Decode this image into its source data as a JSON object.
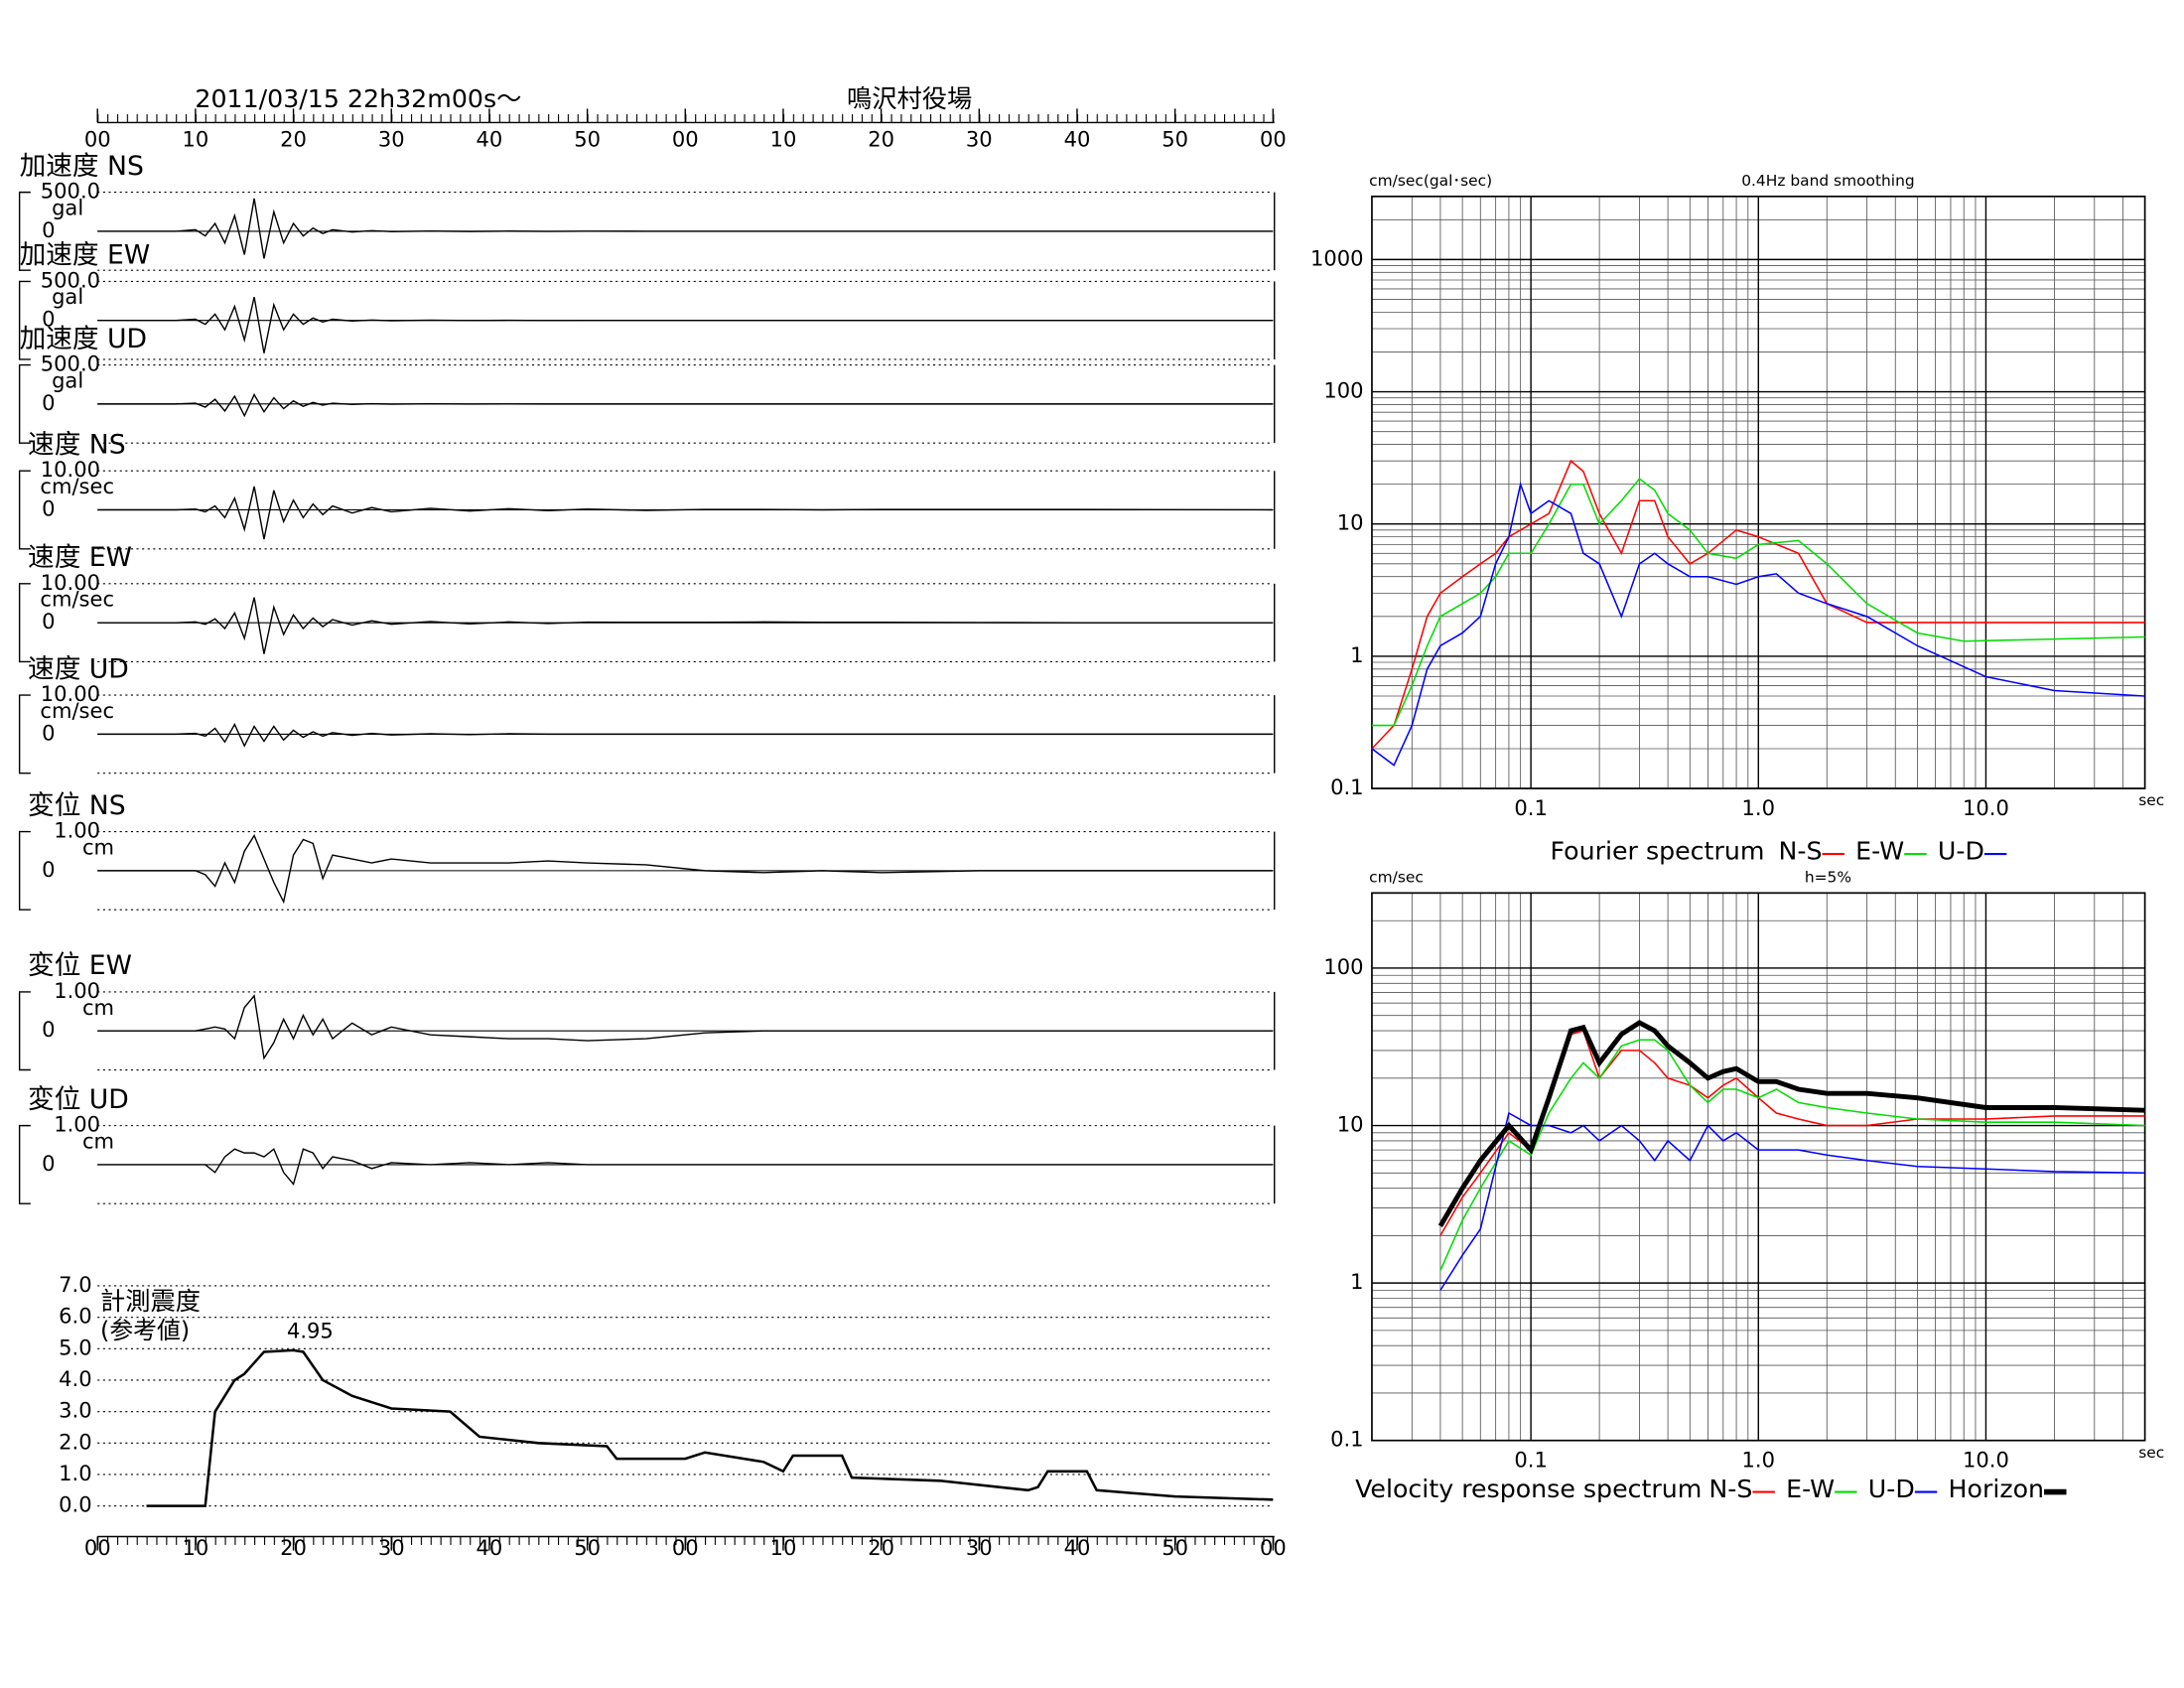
{
  "header": {
    "datetime": "2011/03/15  22h32m00s〜",
    "station": "鳴沢村役場"
  },
  "chart_data": [
    {
      "type": "waveform",
      "xlim": [
        0,
        120
      ],
      "xticks": [
        {
          "value": 0,
          "label": "00"
        },
        {
          "value": 10,
          "label": "10"
        },
        {
          "value": 20,
          "label": "20"
        },
        {
          "value": 30,
          "label": "30"
        },
        {
          "value": 40,
          "label": "40"
        },
        {
          "value": 50,
          "label": "50"
        },
        {
          "value": 60,
          "label": "00"
        },
        {
          "value": 70,
          "label": "10"
        },
        {
          "value": 80,
          "label": "20"
        },
        {
          "value": 90,
          "label": "30"
        },
        {
          "value": 100,
          "label": "40"
        },
        {
          "value": 110,
          "label": "50"
        },
        {
          "value": 120,
          "label": "00"
        }
      ],
      "x": [
        0,
        4,
        8,
        10,
        11,
        12,
        13,
        14,
        15,
        16,
        17,
        18,
        19,
        20,
        21,
        22,
        23,
        24,
        26,
        28,
        30,
        34,
        38,
        42,
        46,
        50,
        56,
        62,
        68,
        74,
        80,
        90,
        100,
        110,
        120
      ],
      "traces": [
        {
          "name": "加速度 NS",
          "unit": "gal",
          "ylim": [
            -500,
            500
          ],
          "yticks": [
            {
              "value": 500,
              "label": "500.0"
            },
            0
          ],
          "values": [
            0,
            0,
            0,
            20,
            -60,
            100,
            -150,
            200,
            -300,
            420,
            -350,
            250,
            -150,
            100,
            -60,
            40,
            -30,
            20,
            -10,
            8,
            -5,
            3,
            -3,
            2,
            -2,
            1,
            0,
            0,
            0,
            0,
            0,
            0,
            0,
            0,
            0
          ]
        },
        {
          "name": "加速度 EW",
          "unit": "gal",
          "ylim": [
            -500,
            500
          ],
          "yticks": [
            {
              "value": 500,
              "label": "500.0"
            },
            0
          ],
          "values": [
            0,
            0,
            0,
            15,
            -50,
            80,
            -120,
            180,
            -250,
            300,
            -420,
            200,
            -120,
            80,
            -50,
            30,
            -20,
            15,
            -8,
            5,
            -4,
            3,
            -2,
            1,
            -1,
            0,
            0,
            0,
            0,
            0,
            0,
            0,
            0,
            0,
            0
          ]
        },
        {
          "name": "加速度 UD",
          "unit": "gal",
          "ylim": [
            -500,
            500
          ],
          "yticks": [
            {
              "value": 500,
              "label": "500.0"
            },
            0
          ],
          "values": [
            0,
            0,
            0,
            10,
            -40,
            60,
            -90,
            100,
            -150,
            120,
            -100,
            80,
            -60,
            40,
            -30,
            20,
            -15,
            10,
            -5,
            4,
            -3,
            2,
            -1,
            1,
            0,
            0,
            0,
            0,
            0,
            0,
            0,
            0,
            0,
            0,
            0
          ]
        },
        {
          "name": "速度 NS",
          "unit": "cm/sec",
          "ylim": [
            -10,
            10
          ],
          "yticks": [
            {
              "value": 10,
              "label": "10.00"
            },
            0
          ],
          "values": [
            0,
            0,
            0,
            0.2,
            -0.5,
            1,
            -2,
            3,
            -5,
            6,
            -7.5,
            5,
            -3,
            2.5,
            -2,
            1.5,
            -1.2,
            1,
            -0.8,
            0.6,
            -0.5,
            0.4,
            -0.3,
            0.3,
            -0.2,
            0.2,
            -0.15,
            0.1,
            0.1,
            0,
            0.1,
            0.1,
            0.1,
            0.05,
            0
          ]
        },
        {
          "name": "速度 EW",
          "unit": "cm/sec",
          "ylim": [
            -10,
            10
          ],
          "yticks": [
            {
              "value": 10,
              "label": "10.00"
            },
            0
          ],
          "values": [
            0,
            0,
            0,
            0.2,
            -0.4,
            1,
            -1.5,
            2.5,
            -4,
            6.5,
            -8,
            4,
            -3,
            2,
            -1.5,
            1.2,
            -1,
            0.8,
            -0.6,
            0.5,
            -0.4,
            0.3,
            -0.3,
            0.2,
            -0.2,
            0.15,
            0.1,
            0.1,
            0.2,
            0.1,
            0.1,
            0.05,
            0,
            0,
            0
          ]
        },
        {
          "name": "速度 UD",
          "unit": "cm/sec",
          "ylim": [
            -10,
            10
          ],
          "yticks": [
            {
              "value": 10,
              "label": "10.00"
            },
            0
          ],
          "values": [
            0,
            0,
            0,
            0.2,
            -0.5,
            1.5,
            -2,
            2.5,
            -3,
            2,
            -1.8,
            2,
            -1.5,
            1,
            -0.8,
            0.6,
            -0.5,
            0.4,
            -0.3,
            0.2,
            -0.2,
            0.1,
            -0.1,
            0.1,
            0,
            0,
            0,
            0,
            0,
            0,
            0,
            0,
            0,
            0,
            0
          ]
        },
        {
          "name": "変位 NS",
          "unit": "cm",
          "ylim": [
            -1,
            1
          ],
          "yticks": [
            {
              "value": 1,
              "label": "1.00"
            },
            0
          ],
          "values": [
            0,
            0,
            0,
            0,
            -0.1,
            -0.4,
            0.2,
            -0.3,
            0.5,
            0.9,
            0.3,
            -0.3,
            -0.8,
            0.4,
            0.8,
            0.7,
            -0.2,
            0.4,
            0.3,
            0.2,
            0.3,
            0.2,
            0.2,
            0.2,
            0.25,
            0.2,
            0.15,
            0,
            -0.05,
            0,
            -0.05,
            0,
            0,
            0,
            0
          ]
        },
        {
          "name": "変位 EW",
          "unit": "cm",
          "ylim": [
            -1,
            1
          ],
          "yticks": [
            {
              "value": 1,
              "label": "1.00"
            },
            0
          ],
          "values": [
            0,
            0,
            0,
            0,
            0.05,
            0.1,
            0.05,
            -0.2,
            0.6,
            0.9,
            -0.7,
            -0.3,
            0.3,
            -0.2,
            0.4,
            -0.1,
            0.3,
            -0.2,
            0.2,
            -0.1,
            0.1,
            -0.1,
            -0.15,
            -0.2,
            -0.2,
            -0.25,
            -0.2,
            -0.05,
            0,
            0,
            0,
            0,
            0,
            0,
            0
          ]
        },
        {
          "name": "変位 UD",
          "unit": "cm",
          "ylim": [
            -1,
            1
          ],
          "yticks": [
            {
              "value": 1,
              "label": "1.00"
            },
            0
          ],
          "values": [
            0,
            0,
            0,
            0,
            0,
            -0.2,
            0.2,
            0.4,
            0.3,
            0.3,
            0.2,
            0.4,
            -0.2,
            -0.5,
            0.4,
            0.3,
            -0.1,
            0.2,
            0.1,
            -0.1,
            0.05,
            0,
            0.05,
            0,
            0.05,
            0,
            0,
            0,
            0,
            0,
            0,
            0,
            0,
            0,
            0
          ]
        }
      ]
    },
    {
      "type": "step-line",
      "ylabel": "計測震度",
      "ylabel_note": "(参考値)",
      "peak_label": "4.95",
      "color": "#000000",
      "xlim": [
        0,
        120
      ],
      "xticks": [
        {
          "value": 0,
          "label": "00"
        },
        {
          "value": 10,
          "label": "10"
        },
        {
          "value": 20,
          "label": "20"
        },
        {
          "value": 30,
          "label": "30"
        },
        {
          "value": 40,
          "label": "40"
        },
        {
          "value": 50,
          "label": "50"
        },
        {
          "value": 60,
          "label": "00"
        },
        {
          "value": 70,
          "label": "10"
        },
        {
          "value": 80,
          "label": "20"
        },
        {
          "value": 90,
          "label": "30"
        },
        {
          "value": 100,
          "label": "40"
        },
        {
          "value": 110,
          "label": "50"
        },
        {
          "value": 120,
          "label": "00"
        }
      ],
      "ylim": [
        0,
        7
      ],
      "yticks": [
        {
          "value": 0,
          "label": "0.0"
        },
        {
          "value": 1,
          "label": "1.0"
        },
        {
          "value": 2,
          "label": "2.0"
        },
        {
          "value": 3,
          "label": "3.0"
        },
        {
          "value": 4,
          "label": "4.0"
        },
        {
          "value": 5,
          "label": "5.0"
        },
        {
          "value": 6,
          "label": "6.0"
        },
        {
          "value": 7,
          "label": "7.0"
        }
      ],
      "x": [
        5,
        11,
        12,
        14,
        15,
        17,
        20,
        21,
        23,
        26,
        30,
        36,
        39,
        45,
        52,
        53,
        60,
        62,
        68,
        70,
        71,
        76,
        77,
        86,
        95,
        96,
        97,
        101,
        102,
        110,
        120
      ],
      "values": [
        0,
        0,
        3,
        4,
        4.2,
        4.9,
        4.95,
        4.9,
        4,
        3.5,
        3.1,
        3,
        2.2,
        2,
        1.9,
        1.5,
        1.5,
        1.7,
        1.4,
        1.1,
        1.6,
        1.6,
        0.9,
        0.8,
        0.5,
        0.6,
        1.1,
        1.1,
        0.5,
        0.3,
        0.2
      ]
    },
    {
      "type": "log-line",
      "title": "Fourier spectrum",
      "ylabel": "cm/sec(gal･sec)",
      "note": "0.4Hz band smoothing",
      "xlabel": "sec",
      "xlim": [
        0.02,
        50
      ],
      "ylim": [
        0.1,
        3000
      ],
      "xticks": [
        0.1,
        {
          "value": 1,
          "label": "1.0"
        },
        {
          "value": 10,
          "label": "10.0"
        }
      ],
      "yticks": [
        0.1,
        1,
        10,
        100,
        1000
      ],
      "series": [
        {
          "name": "N-S",
          "color": "#ff0000",
          "x": [
            0.02,
            0.025,
            0.03,
            0.035,
            0.04,
            0.05,
            0.06,
            0.07,
            0.08,
            0.1,
            0.12,
            0.15,
            0.17,
            0.2,
            0.25,
            0.3,
            0.35,
            0.4,
            0.5,
            0.6,
            0.8,
            1,
            1.5,
            2,
            3,
            10,
            50
          ],
          "values": [
            0.2,
            0.3,
            0.8,
            2,
            3,
            4,
            5,
            6,
            8,
            10,
            12,
            30,
            25,
            12,
            6,
            15,
            15,
            8,
            5,
            6,
            9,
            8,
            6,
            2.5,
            1.8,
            1.8,
            1.8
          ]
        },
        {
          "name": "E-W",
          "color": "#00dd00",
          "x": [
            0.02,
            0.025,
            0.03,
            0.035,
            0.04,
            0.05,
            0.06,
            0.07,
            0.08,
            0.1,
            0.12,
            0.15,
            0.17,
            0.2,
            0.25,
            0.3,
            0.35,
            0.4,
            0.5,
            0.6,
            0.8,
            1,
            1.5,
            2,
            3,
            5,
            8,
            50
          ],
          "values": [
            0.3,
            0.3,
            0.6,
            1.2,
            2,
            2.5,
            3,
            4,
            6,
            6,
            10,
            20,
            20,
            10,
            15,
            22,
            18,
            12,
            9,
            6,
            5.5,
            7,
            7.5,
            5,
            2.5,
            1.5,
            1.3,
            1.4
          ]
        },
        {
          "name": "U-D",
          "color": "#0000ff",
          "x": [
            0.02,
            0.025,
            0.03,
            0.035,
            0.04,
            0.05,
            0.06,
            0.07,
            0.08,
            0.09,
            0.1,
            0.12,
            0.15,
            0.17,
            0.2,
            0.25,
            0.3,
            0.35,
            0.4,
            0.5,
            0.6,
            0.8,
            1,
            1.2,
            1.5,
            2,
            3,
            5,
            10,
            20,
            50
          ],
          "values": [
            0.2,
            0.15,
            0.3,
            0.8,
            1.2,
            1.5,
            2,
            5,
            8,
            20,
            12,
            15,
            12,
            6,
            5,
            2,
            5,
            6,
            5,
            4,
            4,
            3.5,
            4,
            4.2,
            3,
            2.5,
            2,
            1.2,
            0.7,
            0.55,
            0.5
          ]
        }
      ]
    },
    {
      "type": "log-line",
      "title": "Velocity response spectrum",
      "ylabel": "cm/sec",
      "note": "h=5%",
      "xlabel": "sec",
      "xlim": [
        0.02,
        50
      ],
      "ylim": [
        0.1,
        300
      ],
      "xticks": [
        0.1,
        {
          "value": 1,
          "label": "1.0"
        },
        {
          "value": 10,
          "label": "10.0"
        }
      ],
      "yticks": [
        0.1,
        1,
        10,
        100
      ],
      "x": [
        0.04,
        0.05,
        0.06,
        0.08,
        0.1,
        0.12,
        0.15,
        0.17,
        0.2,
        0.25,
        0.3,
        0.35,
        0.4,
        0.5,
        0.6,
        0.7,
        0.8,
        1,
        1.2,
        1.5,
        2,
        3,
        5,
        10,
        20,
        50
      ],
      "series": [
        {
          "name": "N-S",
          "color": "#ff0000",
          "values": [
            2,
            3.5,
            5,
            9,
            7,
            14,
            38,
            40,
            20,
            30,
            30,
            25,
            20,
            18,
            15,
            18,
            20,
            15,
            12,
            11,
            10,
            10,
            11,
            11,
            11.5,
            11.5
          ]
        },
        {
          "name": "E-W",
          "color": "#00dd00",
          "values": [
            1.2,
            2.5,
            4,
            8,
            6.5,
            12,
            20,
            25,
            20,
            32,
            35,
            35,
            30,
            18,
            14,
            17,
            17,
            15,
            17,
            14,
            13,
            12,
            11,
            10.5,
            10.5,
            10
          ]
        },
        {
          "name": "U-D",
          "color": "#0000ff",
          "values": [
            0.9,
            1.5,
            2.2,
            12,
            10,
            10,
            9,
            10,
            8,
            10,
            8,
            6,
            8,
            6,
            10,
            8,
            9,
            7,
            7,
            7,
            6.5,
            6,
            5.5,
            5.3,
            5.1,
            5
          ]
        },
        {
          "name": "Horizon",
          "color": "#000000",
          "bold": true,
          "values": [
            2.3,
            4,
            6,
            10,
            7,
            15,
            40,
            42,
            25,
            38,
            45,
            40,
            32,
            25,
            20,
            22,
            23,
            19,
            19,
            17,
            16,
            16,
            15,
            13,
            13,
            12.5
          ]
        }
      ]
    }
  ]
}
